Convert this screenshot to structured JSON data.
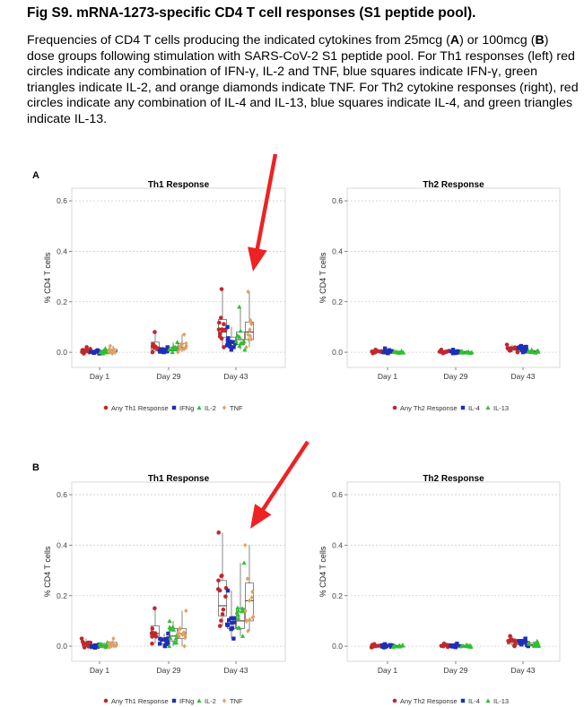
{
  "figure": {
    "title": "Fig S9. mRNA-1273-specific CD4 T cell responses (S1 peptide pool).",
    "caption_parts": [
      "Frequencies of CD4 T cells producing the indicated cytokines from 25mcg (",
      "A",
      ") or 100mcg (",
      "B",
      ") dose groups following stimulation with SARS-CoV-2 S1 peptide pool. For Th1 responses (left) red circles indicate any combination of IFN-γ, IL-2 and TNF, blue squares indicate IFN-γ, green triangles indicate IL-2, and orange diamonds indicate TNF. For Th2 cytokine responses (right), red circles indicate any combination of IL-4 and IL-13, blue squares indicate IL-4, and green triangles indicate IL-13."
    ]
  },
  "colors": {
    "red": "#c0282b",
    "blue": "#1f2fb5",
    "green": "#2fbf2f",
    "orange": "#e0a060",
    "arrow": "#ee2222"
  },
  "chart_data": [
    {
      "type": "box",
      "panel_label": "A",
      "title": "Th1 Response",
      "ylabel": "% CD4 T cells",
      "ylim": [
        -0.06,
        0.65
      ],
      "yticks": [
        "0.0",
        "0.2",
        "0.4",
        "0.6"
      ],
      "categories": [
        "Day 1",
        "Day 29",
        "Day 43"
      ],
      "series": [
        {
          "name": "Any Th1 Response",
          "color": "#c0282b",
          "shape": "circle",
          "boxes": [
            {
              "q1": 0.0,
              "med": 0.005,
              "q3": 0.012,
              "wlo": -0.005,
              "whi": 0.02
            },
            {
              "q1": 0.01,
              "med": 0.02,
              "q3": 0.04,
              "wlo": 0.0,
              "whi": 0.08
            },
            {
              "q1": 0.06,
              "med": 0.08,
              "q3": 0.13,
              "wlo": 0.02,
              "whi": 0.25
            }
          ]
        },
        {
          "name": "IFNg",
          "color": "#1f2fb5",
          "shape": "square",
          "boxes": [
            {
              "q1": -0.002,
              "med": 0.002,
              "q3": 0.004,
              "wlo": -0.005,
              "whi": 0.008
            },
            {
              "q1": 0.003,
              "med": 0.007,
              "q3": 0.012,
              "wlo": 0.0,
              "whi": 0.02
            },
            {
              "q1": 0.025,
              "med": 0.04,
              "q3": 0.06,
              "wlo": 0.01,
              "whi": 0.1
            }
          ]
        },
        {
          "name": "IL-2",
          "color": "#2fbf2f",
          "shape": "triangle",
          "boxes": [
            {
              "q1": 0.0,
              "med": 0.003,
              "q3": 0.008,
              "wlo": -0.005,
              "whi": 0.015
            },
            {
              "q1": 0.005,
              "med": 0.012,
              "q3": 0.02,
              "wlo": 0.0,
              "whi": 0.04
            },
            {
              "q1": 0.03,
              "med": 0.05,
              "q3": 0.08,
              "wlo": 0.01,
              "whi": 0.18
            }
          ]
        },
        {
          "name": "TNF",
          "color": "#e0a060",
          "shape": "diamond",
          "boxes": [
            {
              "q1": 0.0,
              "med": 0.005,
              "q3": 0.012,
              "wlo": -0.005,
              "whi": 0.025
            },
            {
              "q1": 0.012,
              "med": 0.02,
              "q3": 0.035,
              "wlo": 0.0,
              "whi": 0.07
            },
            {
              "q1": 0.05,
              "med": 0.08,
              "q3": 0.12,
              "wlo": 0.02,
              "whi": 0.24
            }
          ]
        }
      ]
    },
    {
      "type": "box",
      "panel_label": "",
      "title": "Th2 Response",
      "ylabel": "% CD4 T cells",
      "ylim": [
        -0.06,
        0.65
      ],
      "yticks": [
        "0.0",
        "0.2",
        "0.4",
        "0.6"
      ],
      "categories": [
        "Day 1",
        "Day 29",
        "Day 43"
      ],
      "series": [
        {
          "name": "Any Th2 Response",
          "color": "#c0282b",
          "shape": "circle",
          "boxes": [
            {
              "q1": 0.0,
              "med": 0.002,
              "q3": 0.005,
              "wlo": -0.004,
              "whi": 0.01
            },
            {
              "q1": 0.0,
              "med": 0.002,
              "q3": 0.005,
              "wlo": -0.004,
              "whi": 0.01
            },
            {
              "q1": 0.008,
              "med": 0.012,
              "q3": 0.02,
              "wlo": 0.0,
              "whi": 0.03
            }
          ]
        },
        {
          "name": "IL-4",
          "color": "#1f2fb5",
          "shape": "square",
          "boxes": [
            {
              "q1": 0.0,
              "med": 0.003,
              "q3": 0.008,
              "wlo": -0.004,
              "whi": 0.015
            },
            {
              "q1": -0.002,
              "med": 0.002,
              "q3": 0.005,
              "wlo": -0.004,
              "whi": 0.01
            },
            {
              "q1": 0.005,
              "med": 0.01,
              "q3": 0.02,
              "wlo": 0.0,
              "whi": 0.025
            }
          ]
        },
        {
          "name": "IL-13",
          "color": "#2fbf2f",
          "shape": "triangle",
          "boxes": [
            {
              "q1": -0.001,
              "med": 0.001,
              "q3": 0.003,
              "wlo": -0.003,
              "whi": 0.005
            },
            {
              "q1": -0.001,
              "med": 0.001,
              "q3": 0.003,
              "wlo": -0.003,
              "whi": 0.005
            },
            {
              "q1": 0.0,
              "med": 0.003,
              "q3": 0.006,
              "wlo": -0.002,
              "whi": 0.01
            }
          ]
        }
      ]
    },
    {
      "type": "box",
      "panel_label": "B",
      "title": "Th1 Response",
      "ylabel": "% CD4 T cells",
      "ylim": [
        -0.06,
        0.65
      ],
      "yticks": [
        "0.0",
        "0.2",
        "0.4",
        "0.6"
      ],
      "categories": [
        "Day 1",
        "Day 29",
        "Day 43"
      ],
      "series": [
        {
          "name": "Any Th1 Response",
          "color": "#c0282b",
          "shape": "circle",
          "boxes": [
            {
              "q1": 0.0,
              "med": 0.005,
              "q3": 0.015,
              "wlo": -0.005,
              "whi": 0.03
            },
            {
              "q1": 0.04,
              "med": 0.05,
              "q3": 0.08,
              "wlo": 0.01,
              "whi": 0.15
            }
          ],
          "boxes_extra": []
        },
        {
          "name": "IFNg",
          "color": "#1f2fb5",
          "shape": "square",
          "boxes": [
            {
              "q1": -0.003,
              "med": 0.0,
              "q3": 0.003,
              "wlo": -0.006,
              "whi": 0.006
            }
          ]
        },
        {
          "name": "IL-2",
          "color": "#2fbf2f",
          "shape": "triangle",
          "boxes": [
            {
              "q1": 0.0,
              "med": 0.003,
              "q3": 0.008,
              "wlo": -0.004,
              "whi": 0.015
            }
          ]
        },
        {
          "name": "TNF",
          "color": "#e0a060",
          "shape": "diamond",
          "boxes": [
            {
              "q1": 0.0,
              "med": 0.005,
              "q3": 0.015,
              "wlo": -0.005,
              "whi": 0.03
            }
          ]
        }
      ]
    },
    {
      "type": "box",
      "panel_label": "",
      "title": "Th2 Response",
      "ylabel": "% CD4 T cells",
      "ylim": [
        -0.06,
        0.65
      ],
      "yticks": [
        "0.0",
        "0.2",
        "0.4",
        "0.6"
      ],
      "categories": [
        "Day 1",
        "Day 29",
        "Day 43"
      ],
      "series": [
        {
          "name": "Any Th2 Response",
          "color": "#c0282b",
          "shape": "circle",
          "boxes": [
            {
              "q1": -0.002,
              "med": 0.001,
              "q3": 0.004,
              "wlo": -0.005,
              "whi": 0.008
            },
            {
              "q1": 0.0,
              "med": 0.002,
              "q3": 0.005,
              "wlo": -0.003,
              "whi": 0.01
            },
            {
              "q1": 0.008,
              "med": 0.015,
              "q3": 0.025,
              "wlo": 0.0,
              "whi": 0.04
            }
          ]
        },
        {
          "name": "IL-4",
          "color": "#1f2fb5",
          "shape": "square",
          "boxes": [
            {
              "q1": -0.002,
              "med": 0.001,
              "q3": 0.004,
              "wlo": -0.005,
              "whi": 0.008
            },
            {
              "q1": -0.001,
              "med": 0.002,
              "q3": 0.005,
              "wlo": -0.004,
              "whi": 0.01
            },
            {
              "q1": 0.005,
              "med": 0.012,
              "q3": 0.02,
              "wlo": 0.0,
              "whi": 0.03
            }
          ]
        },
        {
          "name": "IL-13",
          "color": "#2fbf2f",
          "shape": "triangle",
          "boxes": [
            {
              "q1": -0.001,
              "med": 0.001,
              "q3": 0.003,
              "wlo": -0.003,
              "whi": 0.005
            },
            {
              "q1": -0.001,
              "med": 0.001,
              "q3": 0.003,
              "wlo": -0.003,
              "whi": 0.005
            },
            {
              "q1": 0.002,
              "med": 0.006,
              "q3": 0.012,
              "wlo": 0.0,
              "whi": 0.02
            }
          ]
        }
      ]
    }
  ]
}
